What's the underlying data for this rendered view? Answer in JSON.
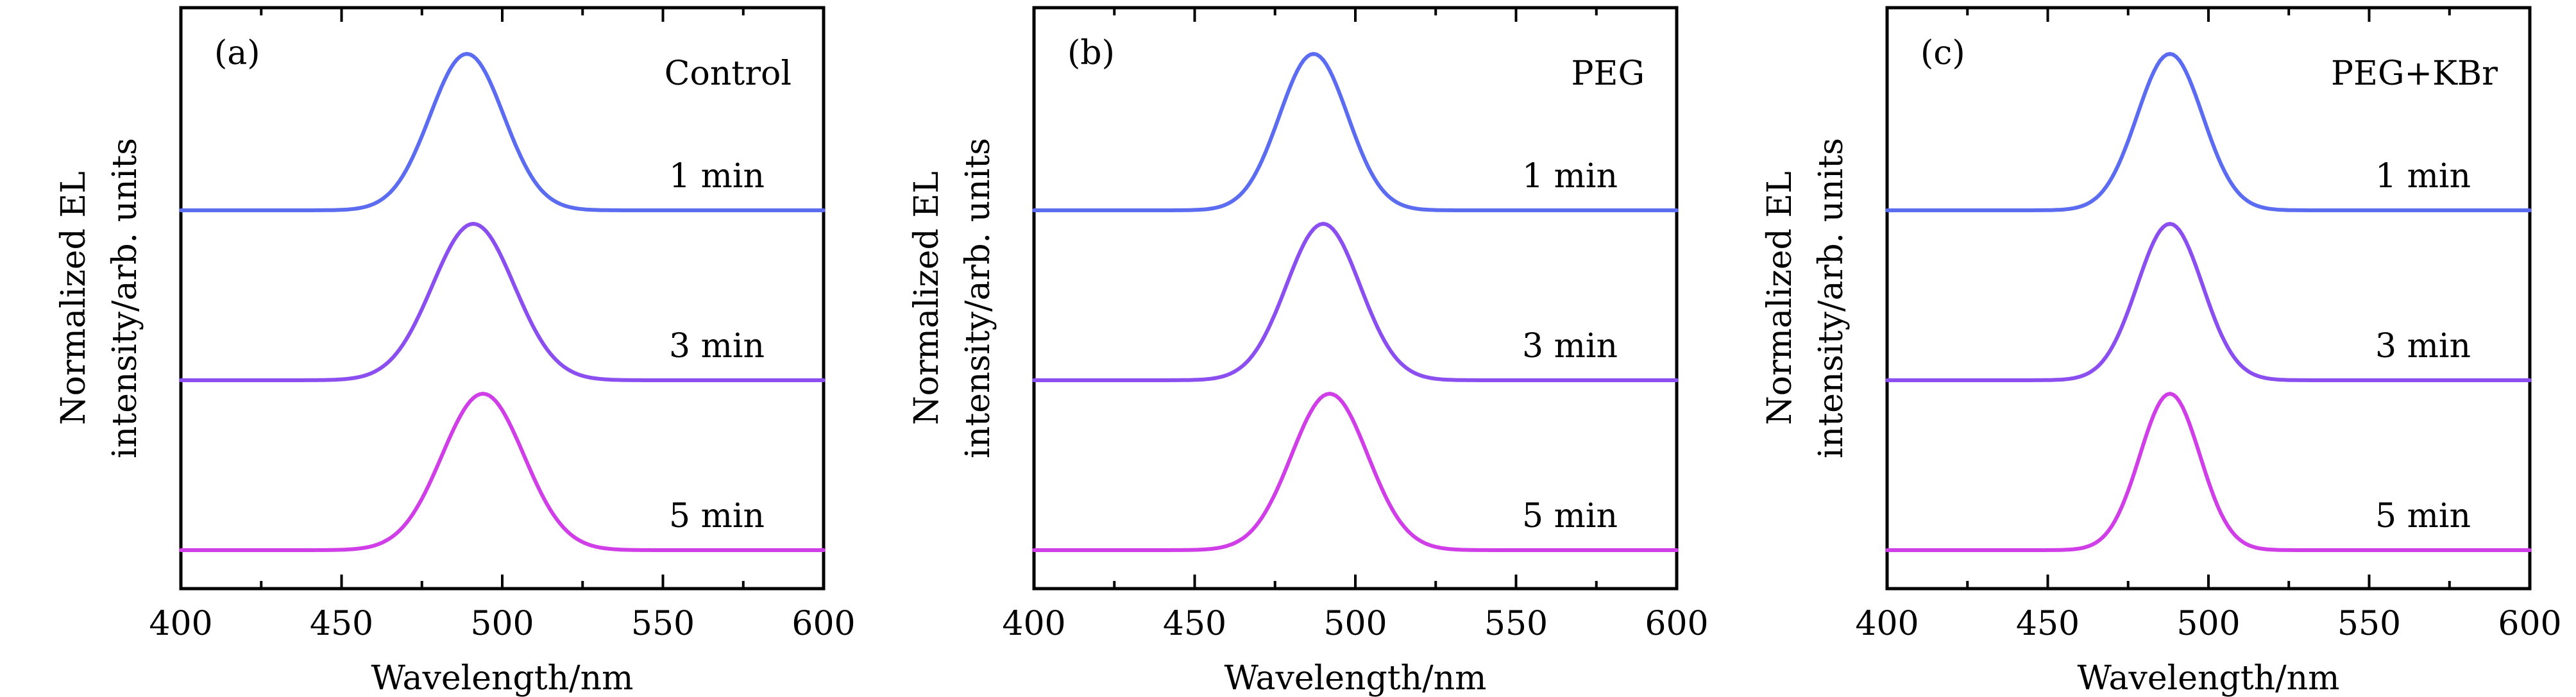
{
  "chart_data": [
    {
      "type": "line",
      "panel_tag": "(a)",
      "sample": "Control",
      "xlabel": "Wavelength/nm",
      "ylabel": [
        "Normalized EL",
        "intensity/arb. units"
      ],
      "xlim": [
        400,
        600
      ],
      "xticks": [
        "400",
        "450",
        "500",
        "550",
        "600"
      ],
      "y_ticks_shown": false,
      "grid": false,
      "series": [
        {
          "name": "1 min",
          "peak_nm": 489,
          "fwhm_nm": 27,
          "color": "#5b6cf0"
        },
        {
          "name": "3 min",
          "peak_nm": 491,
          "fwhm_nm": 30,
          "color": "#8b4ff0"
        },
        {
          "name": "5 min",
          "peak_nm": 494,
          "fwhm_nm": 30,
          "color": "#cf3ee6"
        }
      ]
    },
    {
      "type": "line",
      "panel_tag": "(b)",
      "sample": "PEG",
      "xlabel": "Wavelength/nm",
      "ylabel": [
        "Normalized EL",
        "intensity/arb. units"
      ],
      "xlim": [
        400,
        600
      ],
      "xticks": [
        "400",
        "450",
        "500",
        "550",
        "600"
      ],
      "y_ticks_shown": false,
      "grid": false,
      "series": [
        {
          "name": "1 min",
          "peak_nm": 487,
          "fwhm_nm": 25,
          "color": "#5b6cf0"
        },
        {
          "name": "3 min",
          "peak_nm": 490,
          "fwhm_nm": 27,
          "color": "#8b4ff0"
        },
        {
          "name": "5 min",
          "peak_nm": 492,
          "fwhm_nm": 28,
          "color": "#cf3ee6"
        }
      ]
    },
    {
      "type": "line",
      "panel_tag": "(c)",
      "sample": "PEG+KBr",
      "xlabel": "Wavelength/nm",
      "ylabel": [
        "Normalized EL",
        "intensity/arb. units"
      ],
      "xlim": [
        400,
        600
      ],
      "xticks": [
        "400",
        "450",
        "500",
        "550",
        "600"
      ],
      "y_ticks_shown": false,
      "grid": false,
      "series": [
        {
          "name": "1 min",
          "peak_nm": 488,
          "fwhm_nm": 24,
          "color": "#5b6cf0"
        },
        {
          "name": "3 min",
          "peak_nm": 488,
          "fwhm_nm": 24,
          "color": "#8b4ff0"
        },
        {
          "name": "5 min",
          "peak_nm": 488,
          "fwhm_nm": 22,
          "color": "#cf3ee6"
        }
      ]
    }
  ]
}
